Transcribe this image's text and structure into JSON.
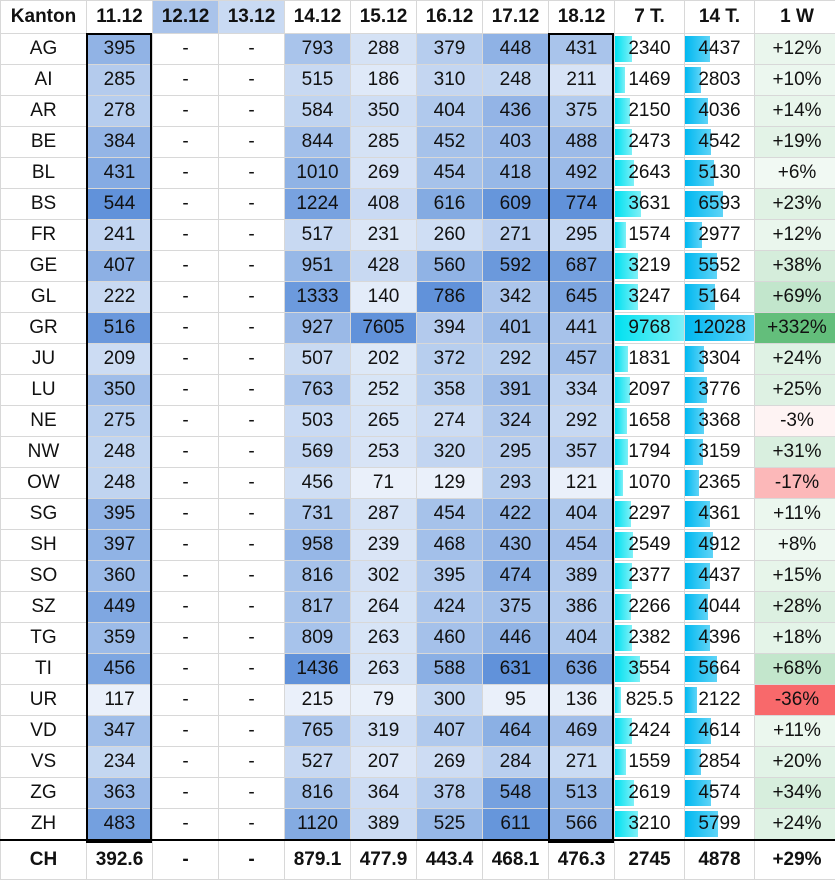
{
  "headers": [
    "Kanton",
    "11.12",
    "12.12",
    "13.12",
    "14.12",
    "15.12",
    "16.12",
    "17.12",
    "18.12",
    "7 T.",
    "14 T.",
    "1 W"
  ],
  "rows": [
    [
      "AG",
      "395",
      "-",
      "-",
      "793",
      "288",
      "379",
      "448",
      "431",
      "2340",
      "4437",
      "+12%"
    ],
    [
      "AI",
      "285",
      "-",
      "-",
      "515",
      "186",
      "310",
      "248",
      "211",
      "1469",
      "2803",
      "+10%"
    ],
    [
      "AR",
      "278",
      "-",
      "-",
      "584",
      "350",
      "404",
      "436",
      "375",
      "2150",
      "4036",
      "+14%"
    ],
    [
      "BE",
      "384",
      "-",
      "-",
      "844",
      "285",
      "452",
      "403",
      "488",
      "2473",
      "4542",
      "+19%"
    ],
    [
      "BL",
      "431",
      "-",
      "-",
      "1010",
      "269",
      "454",
      "418",
      "492",
      "2643",
      "5130",
      "+6%"
    ],
    [
      "BS",
      "544",
      "-",
      "-",
      "1224",
      "408",
      "616",
      "609",
      "774",
      "3631",
      "6593",
      "+23%"
    ],
    [
      "FR",
      "241",
      "-",
      "-",
      "517",
      "231",
      "260",
      "271",
      "295",
      "1574",
      "2977",
      "+12%"
    ],
    [
      "GE",
      "407",
      "-",
      "-",
      "951",
      "428",
      "560",
      "592",
      "687",
      "3219",
      "5552",
      "+38%"
    ],
    [
      "GL",
      "222",
      "-",
      "-",
      "1333",
      "140",
      "786",
      "342",
      "645",
      "3247",
      "5164",
      "+69%"
    ],
    [
      "GR",
      "516",
      "-",
      "-",
      "927",
      "7605",
      "394",
      "401",
      "441",
      "9768",
      "12028",
      "+332%"
    ],
    [
      "JU",
      "209",
      "-",
      "-",
      "507",
      "202",
      "372",
      "292",
      "457",
      "1831",
      "3304",
      "+24%"
    ],
    [
      "LU",
      "350",
      "-",
      "-",
      "763",
      "252",
      "358",
      "391",
      "334",
      "2097",
      "3776",
      "+25%"
    ],
    [
      "NE",
      "275",
      "-",
      "-",
      "503",
      "265",
      "274",
      "324",
      "292",
      "1658",
      "3368",
      "-3%"
    ],
    [
      "NW",
      "248",
      "-",
      "-",
      "569",
      "253",
      "320",
      "295",
      "357",
      "1794",
      "3159",
      "+31%"
    ],
    [
      "OW",
      "248",
      "-",
      "-",
      "456",
      "71",
      "129",
      "293",
      "121",
      "1070",
      "2365",
      "-17%"
    ],
    [
      "SG",
      "395",
      "-",
      "-",
      "731",
      "287",
      "454",
      "422",
      "404",
      "2297",
      "4361",
      "+11%"
    ],
    [
      "SH",
      "397",
      "-",
      "-",
      "958",
      "239",
      "468",
      "430",
      "454",
      "2549",
      "4912",
      "+8%"
    ],
    [
      "SO",
      "360",
      "-",
      "-",
      "816",
      "302",
      "395",
      "474",
      "389",
      "2377",
      "4437",
      "+15%"
    ],
    [
      "SZ",
      "449",
      "-",
      "-",
      "817",
      "264",
      "424",
      "375",
      "386",
      "2266",
      "4044",
      "+28%"
    ],
    [
      "TG",
      "359",
      "-",
      "-",
      "809",
      "263",
      "460",
      "446",
      "404",
      "2382",
      "4396",
      "+18%"
    ],
    [
      "TI",
      "456",
      "-",
      "-",
      "1436",
      "263",
      "588",
      "631",
      "636",
      "3554",
      "5664",
      "+68%"
    ],
    [
      "UR",
      "117",
      "-",
      "-",
      "215",
      "79",
      "300",
      "95",
      "136",
      "825.5",
      "2122",
      "-36%"
    ],
    [
      "VD",
      "347",
      "-",
      "-",
      "765",
      "319",
      "407",
      "464",
      "469",
      "2424",
      "4614",
      "+11%"
    ],
    [
      "VS",
      "234",
      "-",
      "-",
      "527",
      "207",
      "269",
      "284",
      "271",
      "1559",
      "2854",
      "+20%"
    ],
    [
      "ZG",
      "363",
      "-",
      "-",
      "816",
      "364",
      "378",
      "548",
      "513",
      "2619",
      "4574",
      "+34%"
    ],
    [
      "ZH",
      "483",
      "-",
      "-",
      "1120",
      "389",
      "525",
      "611",
      "566",
      "3210",
      "5799",
      "+24%"
    ]
  ],
  "footer": [
    "CH",
    "392.6",
    "-",
    "-",
    "879.1",
    "477.9",
    "443.4",
    "468.1",
    "476.3",
    "2745",
    "4878",
    "+29%"
  ],
  "colors": {
    "heat_low": "#ffffff",
    "heat_high": "#4f86d6",
    "header_highlight_12": "#a9c3ea",
    "header_highlight_13": "#c9daf3",
    "bar_7": "#00e1f0",
    "bar_14": "#00b8f0",
    "change_positive": "#63be7b",
    "change_negative": "#f8696b"
  }
}
